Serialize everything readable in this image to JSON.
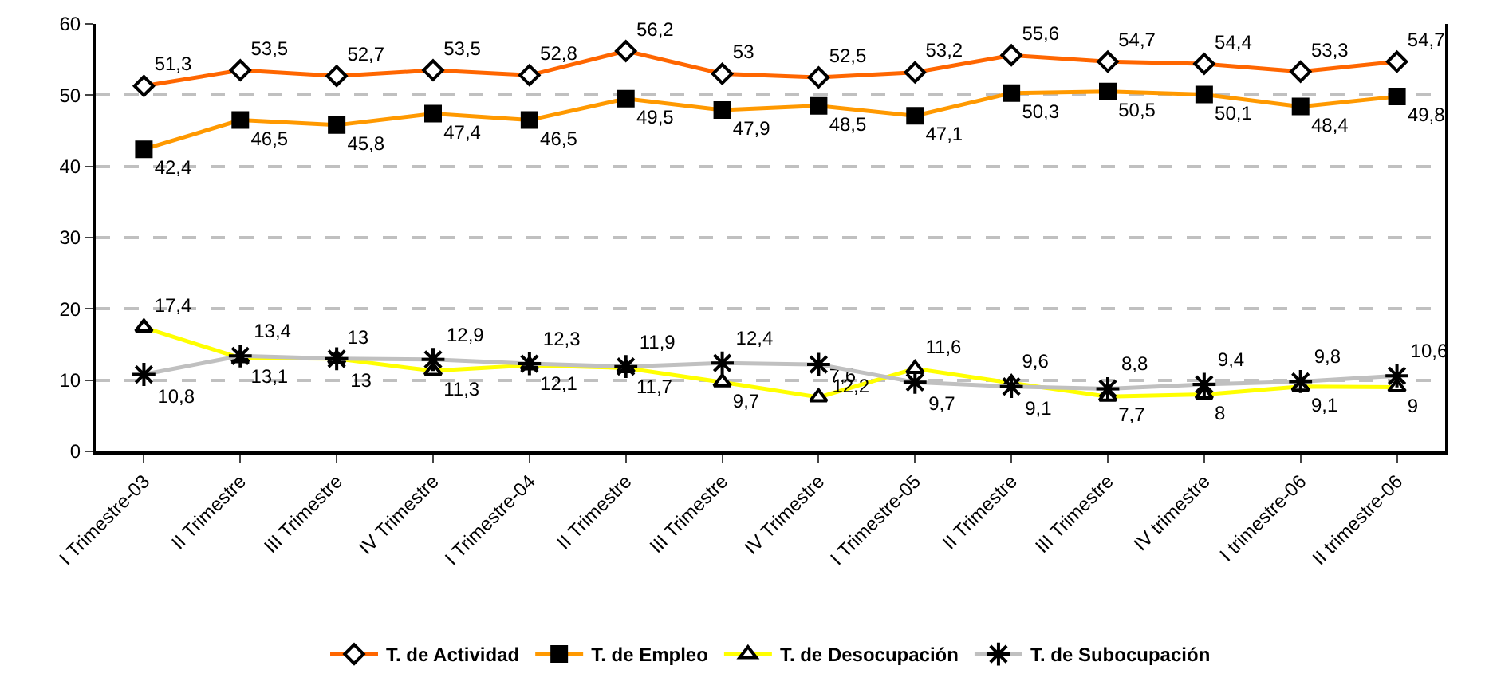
{
  "chart_data": {
    "type": "line",
    "categories": [
      "I Trimestre-03",
      "II Trimestre",
      "III Trimestre",
      "IV Trimestre",
      "I Trimestre-04",
      "II Trimestre",
      "III Trimestre",
      "IV Trimestre",
      "I Trimestre-05",
      "II Trimestre",
      "III Trimestre",
      "IV trimestre",
      "I trimestre-06",
      "II trimestre-06"
    ],
    "ylim": [
      0,
      60
    ],
    "yticks": [
      0,
      10,
      20,
      30,
      40,
      50,
      60
    ],
    "grid": "y",
    "legend": "bottom",
    "series": [
      {
        "name": "T. de Actividad",
        "color": "#ff6600",
        "marker": "diamond",
        "values": [
          51.3,
          53.5,
          52.7,
          53.5,
          52.8,
          56.2,
          53,
          52.5,
          53.2,
          55.6,
          54.7,
          54.4,
          53.3,
          54.7
        ],
        "value_labels": [
          "51,3",
          "53,5",
          "52,7",
          "53,5",
          "52,8",
          "56,2",
          "53",
          "52,5",
          "53,2",
          "55,6",
          "54,7",
          "54,4",
          "53,3",
          "54,7"
        ]
      },
      {
        "name": "T. de Empleo",
        "color": "#ff9900",
        "marker": "square",
        "values": [
          42.4,
          46.5,
          45.8,
          47.4,
          46.5,
          49.5,
          47.9,
          48.5,
          47.1,
          50.3,
          50.5,
          50.1,
          48.4,
          49.8
        ],
        "value_labels": [
          "42,4",
          "46,5",
          "45,8",
          "47,4",
          "46,5",
          "49,5",
          "47,9",
          "48,5",
          "47,1",
          "50,3",
          "50,5",
          "50,1",
          "48,4",
          "49,8"
        ]
      },
      {
        "name": "T. de Desocupación",
        "color": "#ffff00",
        "marker": "triangle",
        "values": [
          17.4,
          13.1,
          13,
          11.3,
          12.1,
          11.7,
          9.7,
          7.6,
          11.6,
          9.6,
          7.7,
          8,
          9.1,
          9
        ],
        "value_labels": [
          "17,4",
          "13,1",
          "13",
          "11,3",
          "12,1",
          "11,7",
          "9,7",
          "7,6",
          "11,6",
          "9,6",
          "7,7",
          "8",
          "9,1",
          "9"
        ]
      },
      {
        "name": "T. de Subocupación",
        "color": "#c0c0c0",
        "marker": "cross",
        "values": [
          10.8,
          13.4,
          13,
          12.9,
          12.3,
          11.9,
          12.4,
          12.2,
          9.7,
          9.1,
          8.8,
          9.4,
          9.8,
          10.6
        ],
        "value_labels": [
          "10,8",
          "13,4",
          "13",
          "12,9",
          "12,3",
          "11,9",
          "12,4",
          "12,2",
          "9,7",
          "9,1",
          "8,8",
          "9,4",
          "9,8",
          "10,6"
        ]
      }
    ]
  }
}
